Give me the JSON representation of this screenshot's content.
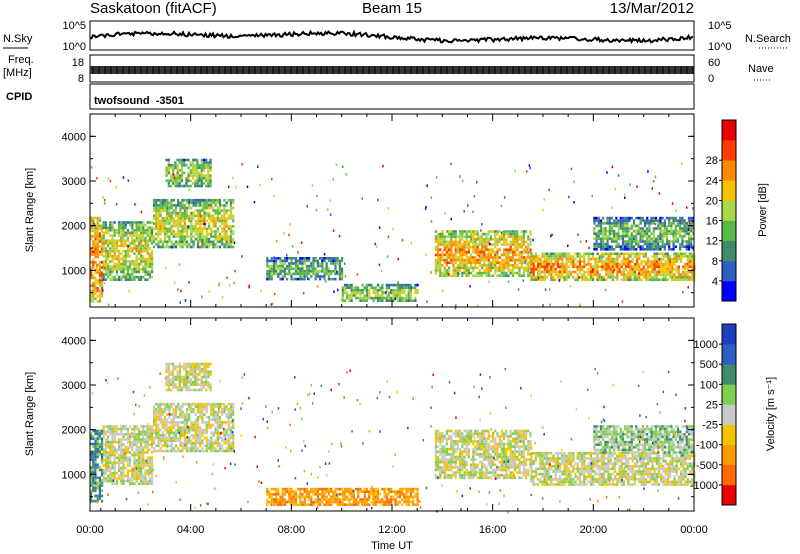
{
  "header": {
    "station": "Saskatoon (fitACF)",
    "beam": "Beam 15",
    "date": "13/Mar/2012"
  },
  "strips": {
    "nsky_label": "N.Sky",
    "nsky_ticks": [
      "10^5",
      "10^0"
    ],
    "nsearch_label": "N.Search",
    "nsearch_ticks": [
      "10^5",
      "10^0"
    ],
    "freq_label": "Freq.",
    "freq_unit": "[MHz]",
    "freq_ticks": [
      "18",
      "8"
    ],
    "nave_label": "Nave",
    "nave_ticks": [
      "60",
      "0"
    ],
    "cpid_label": "CPID",
    "cpid_value": "twofsound  -3501"
  },
  "colors": {
    "power": [
      "#0000ff",
      "#2c5fbf",
      "#3e8a6a",
      "#58b84a",
      "#a8d84a",
      "#f5c400",
      "#ff8a00",
      "#ff3c00",
      "#e80000"
    ],
    "velocity": [
      "#e80000",
      "#ff6a00",
      "#ff9a00",
      "#f5c400",
      "#c8c8c8",
      "#80d050",
      "#3e8a6a",
      "#2c5fbf",
      "#1f3fbf"
    ]
  },
  "chart_data": [
    {
      "type": "heatmap",
      "title": "Power",
      "xlabel": "Time UT",
      "ylabel": "Slant Range [km]",
      "x_ticks": [
        "00:00",
        "04:00",
        "08:00",
        "12:00",
        "16:00",
        "20:00",
        "00:00"
      ],
      "y_ticks": [
        "1000",
        "2000",
        "3000",
        "4000"
      ],
      "ylim": [
        180,
        4500
      ],
      "colorbar": {
        "label": "Power [dB]",
        "ticks": [
          "4",
          "8",
          "12",
          "16",
          "20",
          "24",
          "28"
        ]
      },
      "echo_regions": [
        {
          "t0": 0.0,
          "t1": 0.5,
          "r0": 300,
          "r1": 2200,
          "level": 0.85
        },
        {
          "t0": 0.5,
          "t1": 2.5,
          "r0": 800,
          "r1": 2100,
          "level": 0.5
        },
        {
          "t0": 2.5,
          "t1": 5.7,
          "r0": 1500,
          "r1": 2600,
          "level": 0.45
        },
        {
          "t0": 3.0,
          "t1": 4.8,
          "r0": 2900,
          "r1": 3500,
          "level": 0.35
        },
        {
          "t0": 7.0,
          "t1": 10.0,
          "r0": 800,
          "r1": 1300,
          "level": 0.2
        },
        {
          "t0": 10.0,
          "t1": 13.0,
          "r0": 300,
          "r1": 700,
          "level": 0.35
        },
        {
          "t0": 13.7,
          "t1": 17.5,
          "r0": 900,
          "r1": 1900,
          "level": 0.7
        },
        {
          "t0": 17.5,
          "t1": 24.0,
          "r0": 800,
          "r1": 1400,
          "level": 0.75
        },
        {
          "t0": 20.0,
          "t1": 24.0,
          "r0": 1500,
          "r1": 2200,
          "level": 0.2
        }
      ]
    },
    {
      "type": "heatmap",
      "title": "Velocity",
      "xlabel": "Time UT",
      "ylabel": "Slant Range [km]",
      "x_ticks": [
        "00:00",
        "04:00",
        "08:00",
        "12:00",
        "16:00",
        "20:00",
        "00:00"
      ],
      "y_ticks": [
        "1000",
        "2000",
        "3000",
        "4000"
      ],
      "ylim": [
        180,
        4500
      ],
      "colorbar": {
        "label": "Velocity [m s⁻¹]",
        "ticks": [
          "1000",
          "500",
          "100",
          "25",
          "-25",
          "-100",
          "-500",
          "-1000"
        ]
      },
      "echo_regions": [
        {
          "t0": 0.0,
          "t1": 0.5,
          "r0": 400,
          "r1": 2000,
          "level": 0.75
        },
        {
          "t0": 0.5,
          "t1": 2.5,
          "r0": 800,
          "r1": 2100,
          "level": 0.5
        },
        {
          "t0": 2.5,
          "t1": 5.7,
          "r0": 1500,
          "r1": 2600,
          "level": 0.5
        },
        {
          "t0": 3.0,
          "t1": 4.8,
          "r0": 2900,
          "r1": 3500,
          "level": 0.5
        },
        {
          "t0": 7.0,
          "t1": 10.0,
          "r0": 300,
          "r1": 700,
          "level": 0.25
        },
        {
          "t0": 10.0,
          "t1": 13.0,
          "r0": 300,
          "r1": 700,
          "level": 0.25
        },
        {
          "t0": 13.7,
          "t1": 17.5,
          "r0": 900,
          "r1": 2000,
          "level": 0.5
        },
        {
          "t0": 17.5,
          "t1": 24.0,
          "r0": 800,
          "r1": 1500,
          "level": 0.5
        },
        {
          "t0": 20.0,
          "t1": 24.0,
          "r0": 1500,
          "r1": 2100,
          "level": 0.6
        }
      ]
    }
  ]
}
